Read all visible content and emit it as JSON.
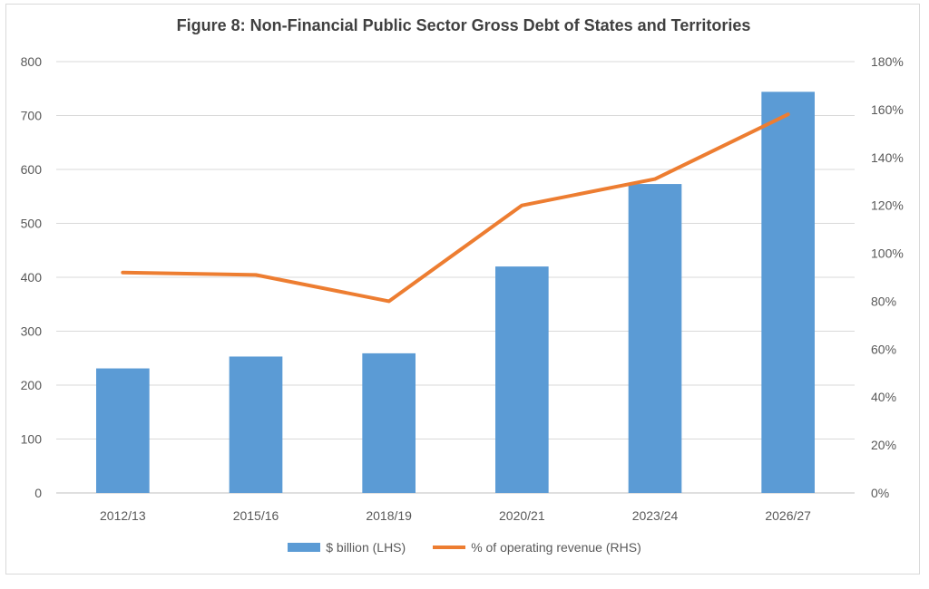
{
  "chart_data": {
    "type": "bar",
    "title": "Figure 8: Non-Financial Public Sector Gross Debt of States and Territories",
    "categories": [
      "2012/13",
      "2015/16",
      "2018/19",
      "2020/21",
      "2023/24",
      "2026/27"
    ],
    "series": [
      {
        "name": "$ billion (LHS)",
        "type": "bar",
        "axis": "left",
        "color": "#5b9bd5",
        "values": [
          231,
          253,
          259,
          420,
          573,
          744
        ]
      },
      {
        "name": "% of operating revenue (RHS)",
        "type": "line",
        "axis": "right",
        "color": "#ed7d31",
        "values": [
          92,
          91,
          80,
          120,
          131,
          158
        ]
      }
    ],
    "y_left": {
      "ylim": [
        0,
        800
      ],
      "ticks": [
        "0",
        "100",
        "200",
        "300",
        "400",
        "500",
        "600",
        "700",
        "800"
      ]
    },
    "y_right": {
      "ylim": [
        0,
        180
      ],
      "ticks": [
        "0%",
        "20%",
        "40%",
        "60%",
        "80%",
        "100%",
        "120%",
        "140%",
        "160%",
        "180%"
      ]
    },
    "grid": true,
    "legend_position": "bottom"
  }
}
